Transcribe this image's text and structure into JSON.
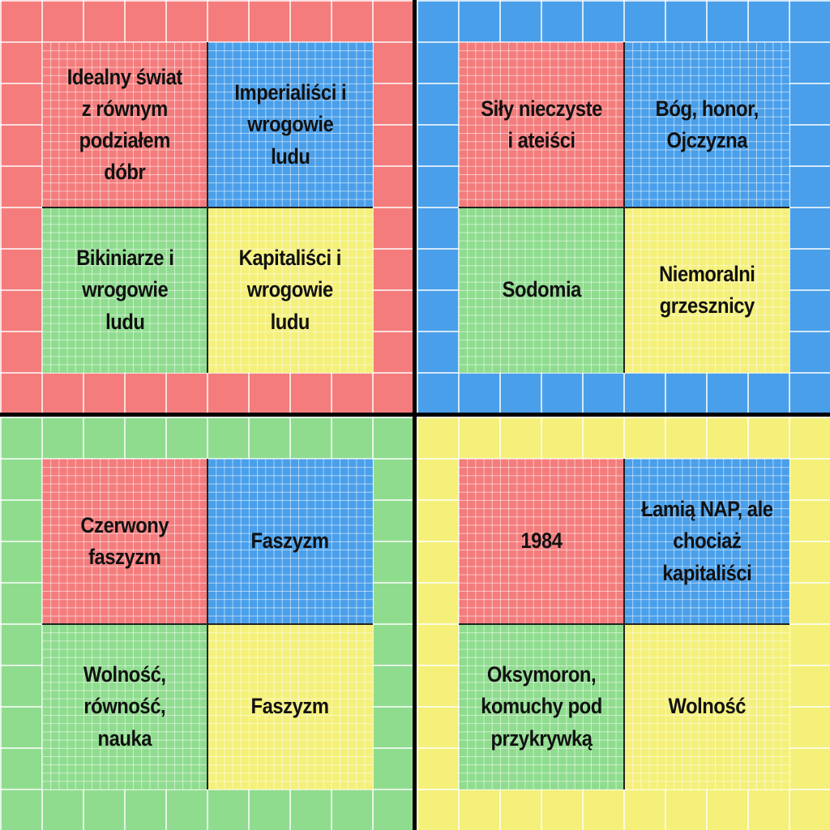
{
  "colors": {
    "red": "#f47c7c",
    "blue": "#4a9fea",
    "green": "#8fdc8f",
    "yellow": "#f4f07a",
    "divider": "#000000"
  },
  "quadrants": {
    "top_left": {
      "border_color": "red",
      "cells": {
        "top_left": {
          "color": "red",
          "label": "Idealny świat\nz równym\npodziałem\ndóbr"
        },
        "top_right": {
          "color": "blue",
          "label": "Imperialiści i\nwrogowie\nludu"
        },
        "bottom_left": {
          "color": "green",
          "label": "Bikiniarze i\nwrogowie\nludu"
        },
        "bottom_right": {
          "color": "yellow",
          "label": "Kapitaliści i\nwrogowie\nludu"
        }
      }
    },
    "top_right": {
      "border_color": "blue",
      "cells": {
        "top_left": {
          "color": "red",
          "label": "Siły nieczyste\ni ateiści"
        },
        "top_right": {
          "color": "blue",
          "label": "Bóg, honor,\nOjczyzna"
        },
        "bottom_left": {
          "color": "green",
          "label": "Sodomia"
        },
        "bottom_right": {
          "color": "yellow",
          "label": "Niemoralni\ngrzesznicy"
        }
      }
    },
    "bottom_left": {
      "border_color": "green",
      "cells": {
        "top_left": {
          "color": "red",
          "label": "Czerwony\nfaszyzm"
        },
        "top_right": {
          "color": "blue",
          "label": "Faszyzm"
        },
        "bottom_left": {
          "color": "green",
          "label": "Wolność,\nrówność,\nnauka"
        },
        "bottom_right": {
          "color": "yellow",
          "label": "Faszyzm"
        }
      }
    },
    "bottom_right": {
      "border_color": "yellow",
      "cells": {
        "top_left": {
          "color": "red",
          "label": "1984"
        },
        "top_right": {
          "color": "blue",
          "label": "Łamią NAP, ale\nchociaż\nkapitaliści"
        },
        "bottom_left": {
          "color": "green",
          "label": "Oksymoron,\nkomuchy pod\nprzykrywką"
        },
        "bottom_right": {
          "color": "yellow",
          "label": "Wolność"
        }
      }
    }
  }
}
